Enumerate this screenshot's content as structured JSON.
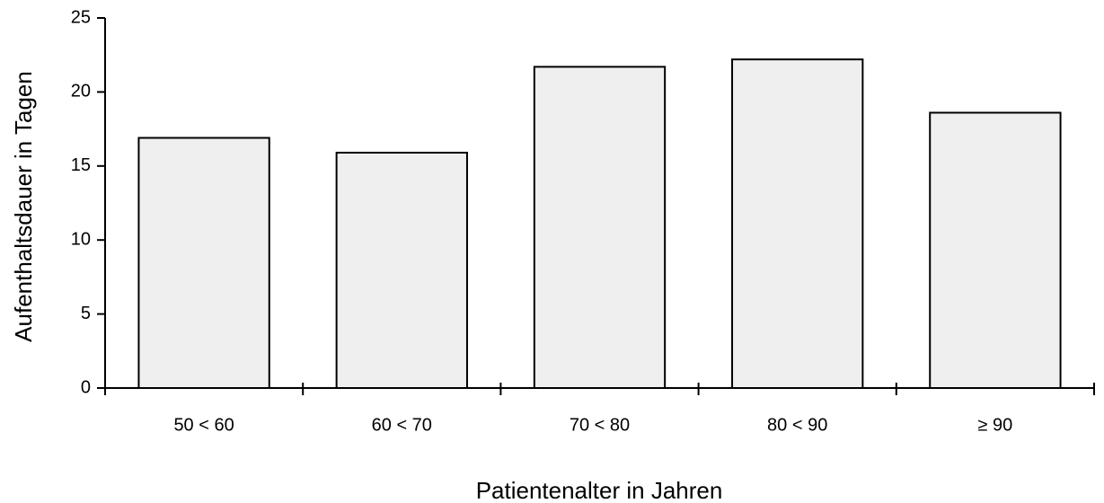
{
  "chart_data": {
    "type": "bar",
    "x_label": "Patientenalter in Jahren",
    "y_label": "Aufenthaltsdauer in Tagen",
    "categories": [
      "50 < 60",
      "60 < 70",
      "70 < 80",
      "80 < 90",
      "≥ 90"
    ],
    "values": [
      16.9,
      15.9,
      21.7,
      22.2,
      18.6
    ],
    "color": "#efefef",
    "ylim": [
      0,
      25
    ],
    "yticks": [
      0,
      5,
      10,
      15,
      20,
      25
    ],
    "grid": false
  }
}
